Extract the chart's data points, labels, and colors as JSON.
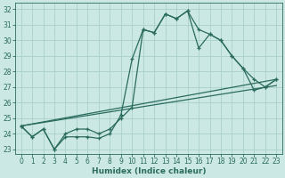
{
  "xlabel": "Humidex (Indice chaleur)",
  "bg_color": "#cce8e4",
  "grid_color": "#aacfcc",
  "line_color": "#2a6b5e",
  "xlim": [
    -0.5,
    23.5
  ],
  "ylim": [
    22.7,
    32.4
  ],
  "xticks": [
    0,
    1,
    2,
    3,
    4,
    5,
    6,
    7,
    8,
    9,
    10,
    11,
    12,
    13,
    14,
    15,
    16,
    17,
    18,
    19,
    20,
    21,
    22,
    23
  ],
  "yticks": [
    23,
    24,
    25,
    26,
    27,
    28,
    29,
    30,
    31,
    32
  ],
  "line1_x": [
    0,
    1,
    2,
    3,
    4,
    5,
    6,
    7,
    8,
    9,
    10,
    11,
    12,
    13,
    14,
    15,
    16,
    17,
    18,
    19,
    20,
    21,
    22,
    23
  ],
  "line1_y": [
    24.5,
    23.8,
    24.3,
    23.0,
    23.8,
    23.8,
    23.8,
    23.7,
    24.0,
    25.2,
    28.8,
    30.7,
    30.5,
    31.7,
    31.4,
    31.9,
    30.7,
    30.4,
    30.0,
    29.0,
    28.2,
    26.8,
    27.0,
    27.5
  ],
  "line2_x": [
    0,
    1,
    2,
    3,
    4,
    5,
    6,
    7,
    8,
    9,
    10,
    11,
    12,
    13,
    14,
    15,
    16,
    17,
    18,
    19,
    20,
    21,
    22,
    23
  ],
  "line2_y": [
    24.5,
    23.8,
    24.3,
    23.0,
    24.0,
    24.3,
    24.3,
    24.0,
    24.3,
    25.0,
    25.7,
    30.7,
    30.5,
    31.7,
    31.4,
    31.9,
    29.5,
    30.4,
    30.0,
    29.0,
    28.2,
    27.5,
    27.0,
    27.5
  ],
  "line3_x": [
    0,
    23
  ],
  "line3_y": [
    24.5,
    27.5
  ],
  "line4_x": [
    0,
    23
  ],
  "line4_y": [
    24.5,
    27.1
  ]
}
